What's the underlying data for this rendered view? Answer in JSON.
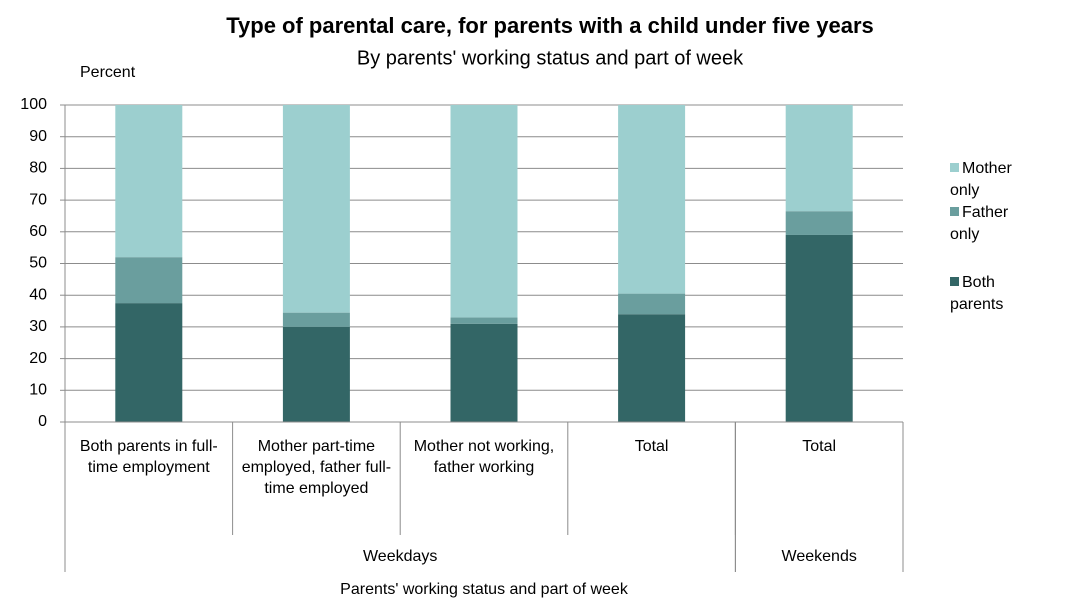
{
  "chart_data": {
    "type": "stacked_bar",
    "title": "Type of parental care, for parents with a child under five years",
    "subtitle": "By parents' working status and part of week",
    "y_label": "Percent",
    "x_label": "Parents' working status and part of week",
    "categories": [
      "Both parents in full-time employment",
      "Mother part-time employed, father full-time employed",
      "Mother not working, father working",
      "Total",
      "Total"
    ],
    "groups": [
      {
        "label": "Weekdays",
        "count": 4
      },
      {
        "label": "Weekends",
        "count": 1
      }
    ],
    "series": [
      {
        "name": "Both parents",
        "color": "#336666",
        "values": [
          37.5,
          30,
          31,
          34,
          59
        ]
      },
      {
        "name": "Father only",
        "color": "#6a9e9e",
        "values": [
          14.5,
          4.5,
          2,
          6.5,
          7.5
        ]
      },
      {
        "name": "Mother only",
        "color": "#9ccfcf",
        "values": [
          48,
          65.5,
          67,
          59.5,
          33.5
        ]
      }
    ],
    "ylim": [
      0,
      100
    ],
    "yticks": [
      0,
      10,
      20,
      30,
      40,
      50,
      60,
      70,
      80,
      90,
      100
    ],
    "grid": true,
    "legend": "right"
  }
}
